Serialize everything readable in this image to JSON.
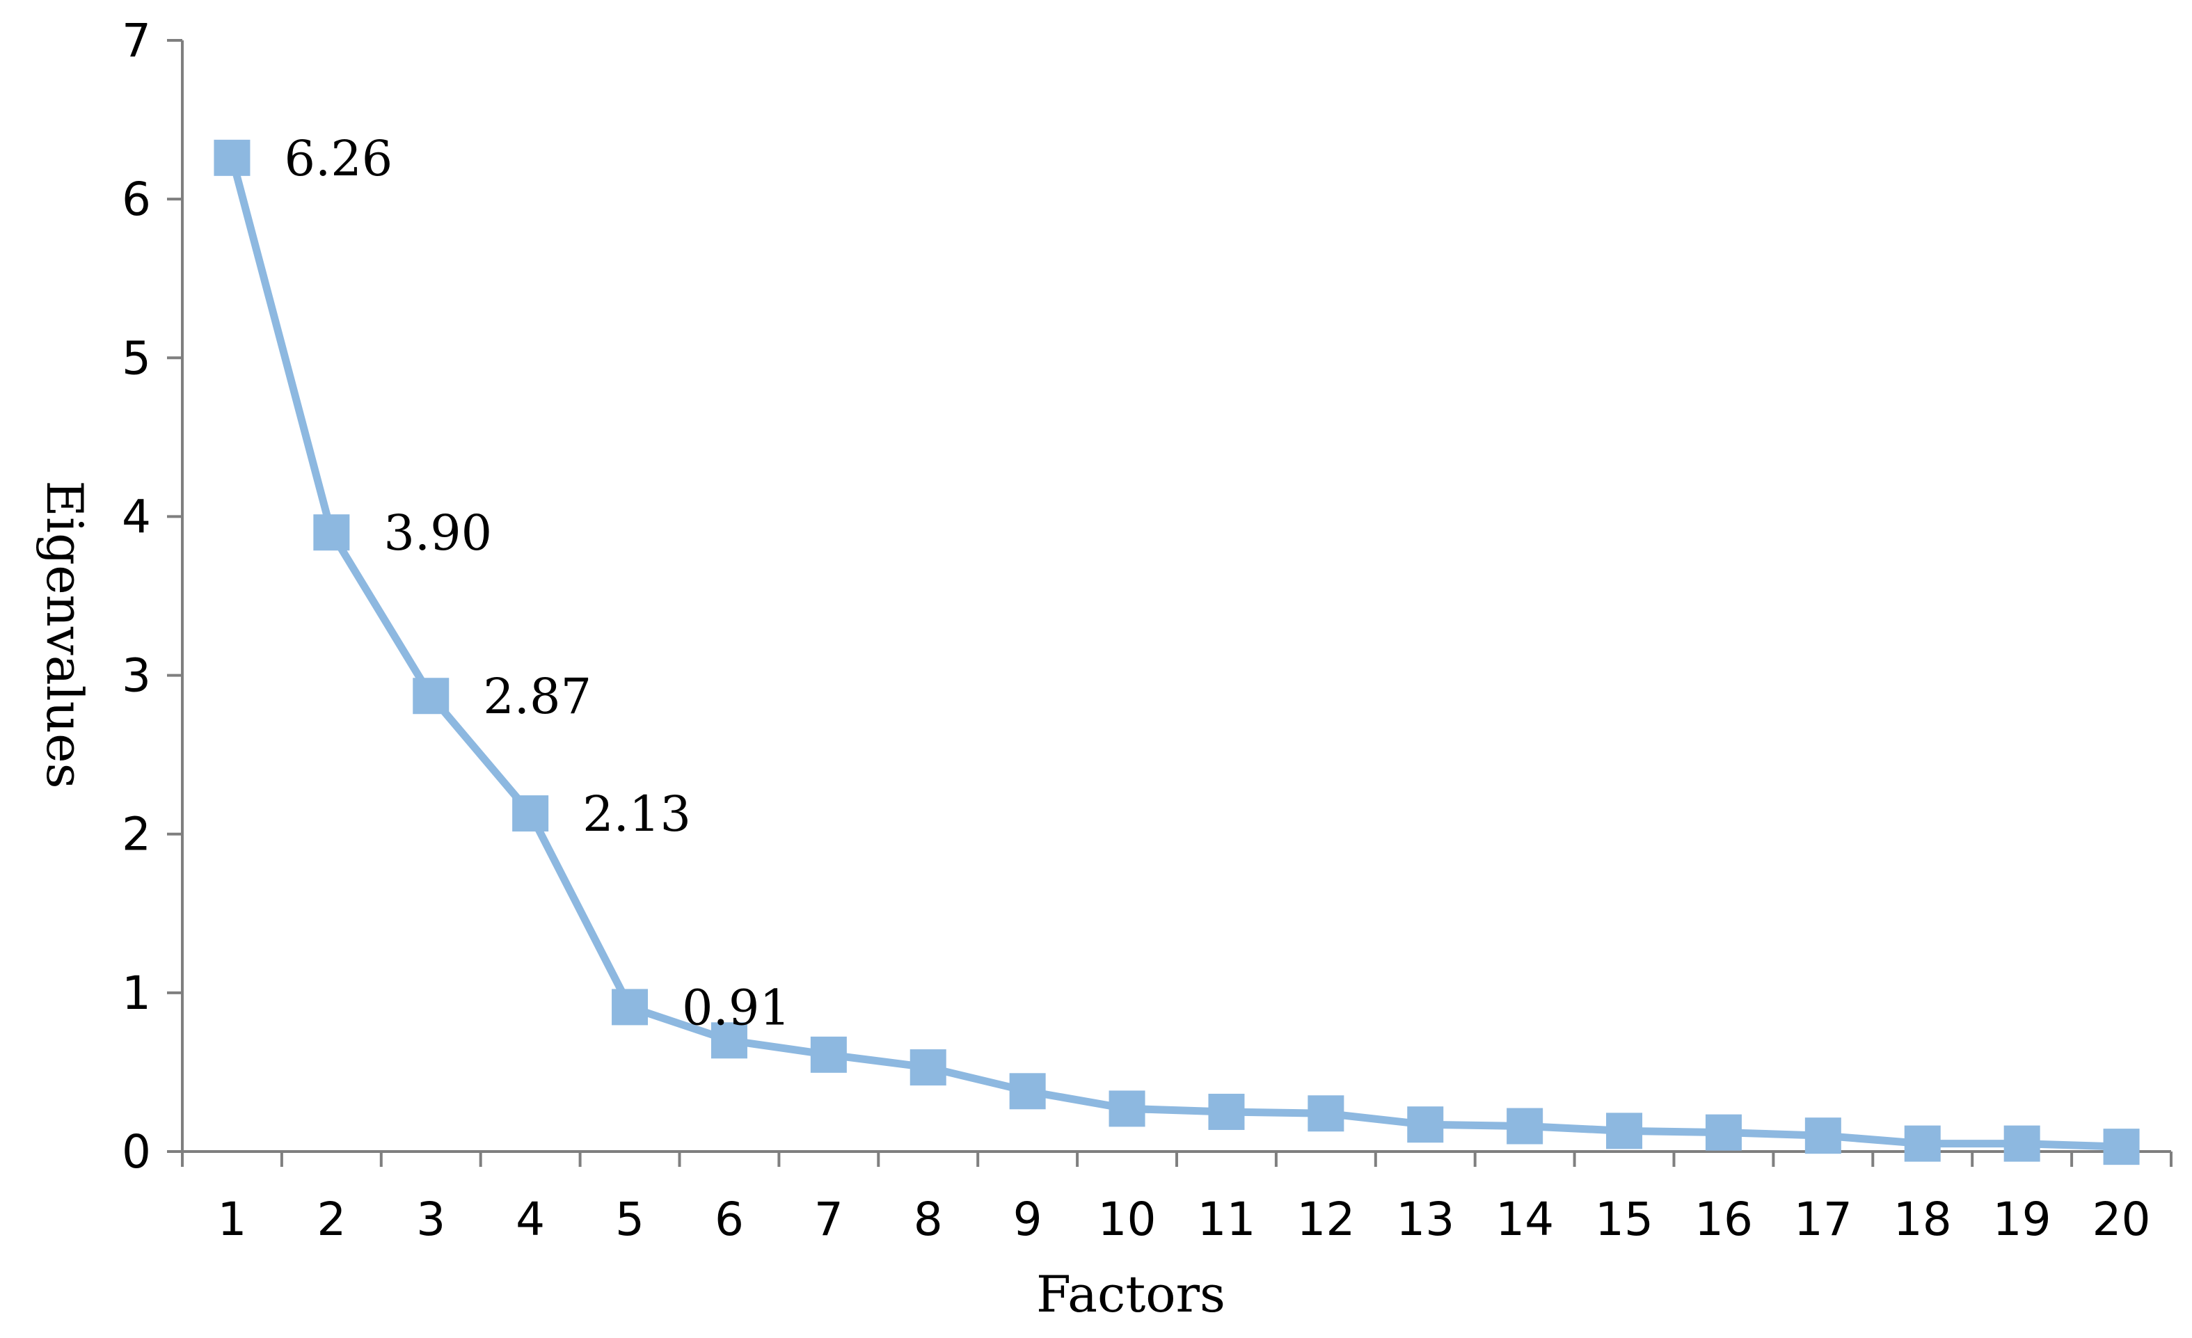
{
  "chart_data": {
    "type": "line",
    "title": "",
    "xlabel": "Factors",
    "ylabel": "Eigenvalues",
    "categories": [
      "1",
      "2",
      "3",
      "4",
      "5",
      "6",
      "7",
      "8",
      "9",
      "10",
      "11",
      "12",
      "13",
      "14",
      "15",
      "16",
      "17",
      "18",
      "19",
      "20"
    ],
    "series": [
      {
        "values": [
          6.26,
          3.9,
          2.87,
          2.13,
          0.91,
          0.7,
          0.61,
          0.53,
          0.38,
          0.27,
          0.25,
          0.24,
          0.17,
          0.16,
          0.13,
          0.12,
          0.1,
          0.05,
          0.05,
          0.03
        ],
        "color": "#8db8e0",
        "marker": "square"
      }
    ],
    "data_labels": [
      {
        "index": 0,
        "text": "6.26"
      },
      {
        "index": 1,
        "text": "3.90"
      },
      {
        "index": 2,
        "text": "2.87"
      },
      {
        "index": 3,
        "text": "2.13"
      },
      {
        "index": 4,
        "text": "0.91"
      }
    ],
    "ylim": [
      0,
      7
    ],
    "yticks": [
      "0",
      "1",
      "2",
      "3",
      "4",
      "5",
      "6",
      "7"
    ],
    "grid": false,
    "legend": "none"
  }
}
